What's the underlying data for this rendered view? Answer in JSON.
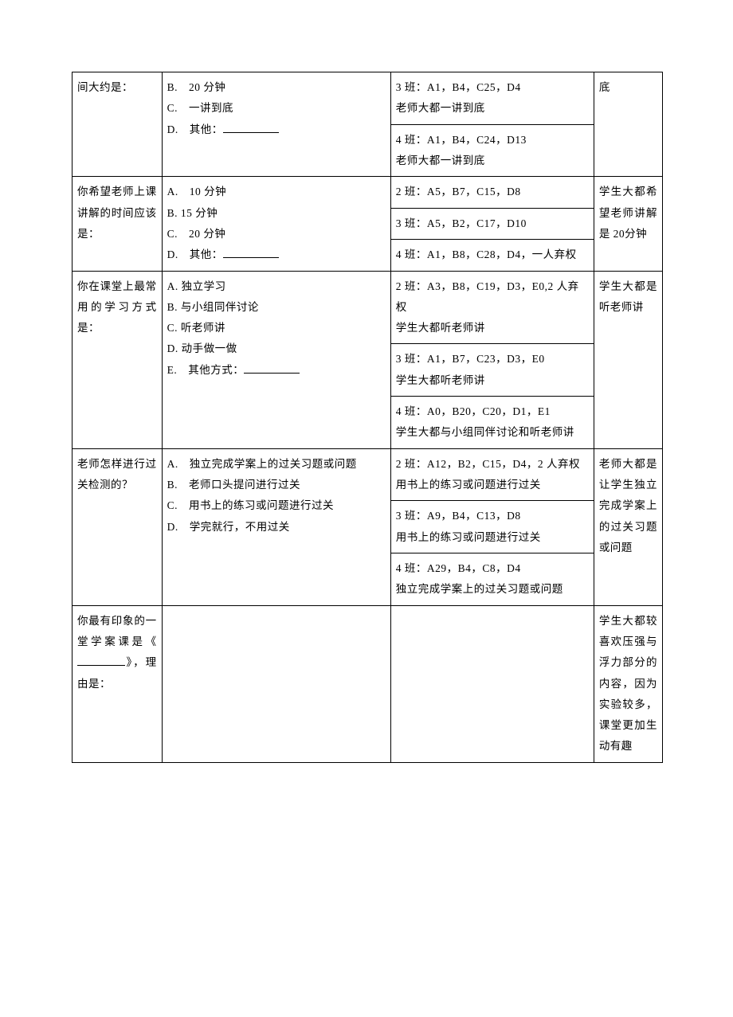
{
  "rows": [
    {
      "question": "间大约是：",
      "options": [
        "B.　20 分钟",
        "C.　一讲到底",
        "D.　其他："
      ],
      "options_blank_after": 3,
      "results": [
        "3 班：A1，B4，C25，D4\n老师大都一讲到底",
        "4 班：A1，B4，C24，D13\n老师大都一讲到底"
      ],
      "summary": "底"
    },
    {
      "question": "你希望老师上课讲解的时间应该是：",
      "options": [
        "A.　10 分钟",
        "B. 15 分钟",
        "C.　20 分钟",
        "D.　其他："
      ],
      "options_blank_after": 4,
      "results": [
        "2 班：A5，B7，C15，D8",
        "3 班：A5，B2，C17，D10",
        "4 班：A1，B8，C28，D4，一人弃权"
      ],
      "summary": "学生大都希望老师讲解是 20分钟"
    },
    {
      "question": "你在课堂上最常用的学习方式是：",
      "options": [
        "A. 独立学习",
        "B. 与小组同伴讨论",
        "C. 听老师讲",
        "D. 动手做一做",
        "E.　其他方式："
      ],
      "options_blank_after": 5,
      "results": [
        "2 班：A3，B8，C19，D3，E0,2 人弃权\n学生大都听老师讲",
        "3 班：A1，B7，C23，D3，E0\n学生大都听老师讲",
        "4 班：A0，B20，C20，D1，E1\n学生大都与小组同伴讨论和听老师讲"
      ],
      "summary": "学生大都是听老师讲"
    },
    {
      "question": "老师怎样进行过关检测的？",
      "options": [
        "A.　独立完成学案上的过关习题或问题",
        "B.　老师口头提问进行过关",
        "C.　用书上的练习或问题进行过关",
        "D.　学完就行，不用过关"
      ],
      "options_blank_after": -1,
      "results": [
        "2 班：A12，B2，C15，D4，2 人弃权\n用书上的练习或问题进行过关",
        "3 班：A9，B4，C13，D8\n用书上的练习或问题进行过关",
        "4 班：A29，B4，C8，D4\n独立完成学案上的过关习题或问题"
      ],
      "summary": "老师大都是让学生独立完成学案上的过关习题或问题"
    },
    {
      "question_pre": "你最有印象的一堂学案课是《",
      "question_post": "》，理由是：",
      "options": [],
      "results": [
        ""
      ],
      "summary": "学生大都较喜欢压强与浮力部分的内容，因为实验较多，课堂更加生动有趣"
    }
  ]
}
